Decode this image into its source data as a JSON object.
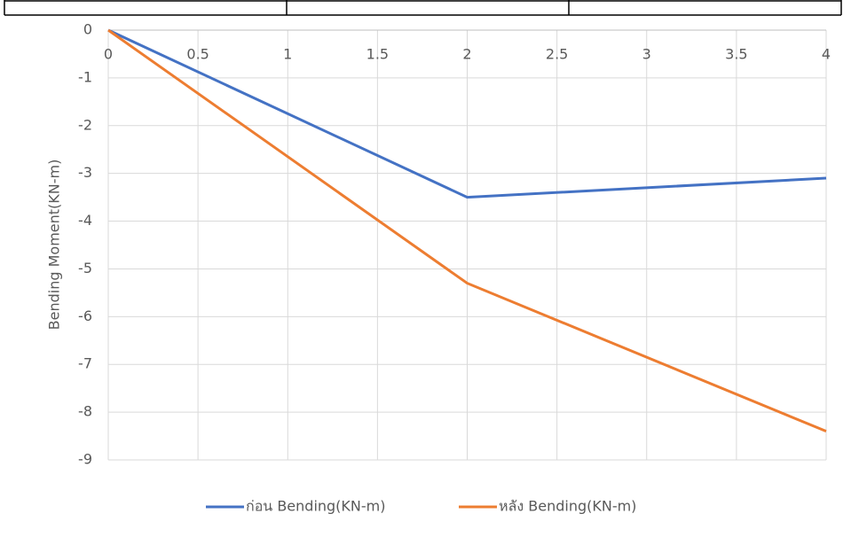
{
  "chart_data": {
    "type": "line",
    "y_label": "Bending Moment(KN-m)",
    "x": [
      0,
      2,
      4
    ],
    "series": [
      {
        "name": "ก่อน Bending(KN-m)",
        "color": "#4472c4",
        "values": [
          0,
          -3.5,
          -3.1
        ]
      },
      {
        "name": "หลัง Bending(KN-m)",
        "color": "#ed7d31",
        "values": [
          0,
          -5.3,
          -8.4
        ]
      }
    ],
    "xlim": [
      0,
      4
    ],
    "xticks": [
      0,
      0.5,
      1,
      1.5,
      2,
      2.5,
      3,
      3.5,
      4
    ],
    "ylim": [
      -9,
      0
    ],
    "yticks": [
      -9,
      -8,
      -7,
      -6,
      -5,
      -4,
      -3,
      -2,
      -1,
      0
    ],
    "grid": true,
    "legend": "bottom"
  }
}
